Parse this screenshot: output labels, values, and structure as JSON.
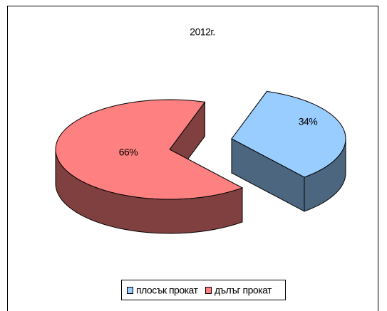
{
  "chart_data": {
    "type": "pie3d",
    "title": "2012г.",
    "categories": [
      "плосък прокат",
      "дълъг прокат"
    ],
    "values": [
      34,
      66
    ],
    "value_labels": [
      "34%",
      "66%"
    ],
    "colors": [
      "#99ccff",
      "#ff8080"
    ],
    "legend": "bottom"
  }
}
